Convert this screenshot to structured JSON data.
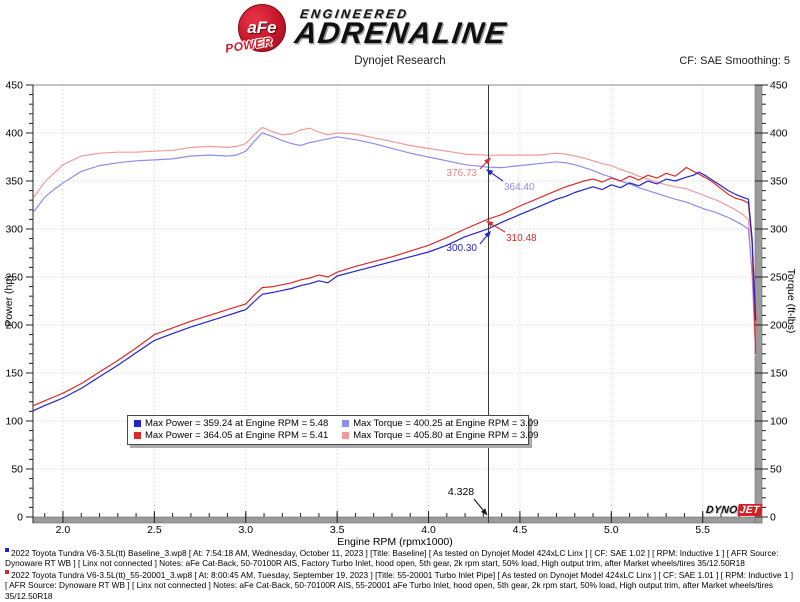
{
  "header": {
    "brand": {
      "badge_main": "aFe",
      "badge_sub": "POWER",
      "line1": "ENGINEERED",
      "line2": "ADRENALINE"
    },
    "title": "Dynojet Research",
    "cf_label": "CF: SAE Smoothing: 5"
  },
  "legend": {
    "entries": [
      {
        "swatch": "#2323cd",
        "text": "Max Power = 359.24 at Engine RPM = 5.48"
      },
      {
        "swatch": "#8d8dec",
        "text": "Max Torque = 400.25 at Engine RPM = 3.09"
      },
      {
        "swatch": "#d92b2b",
        "text": "Max Power = 364.05 at Engine RPM = 5.41"
      },
      {
        "swatch": "#f09a9a",
        "text": "Max Torque = 405.80 at Engine RPM = 3.09"
      }
    ]
  },
  "watermark": {
    "part1": "DYNO",
    "part2": "JET"
  },
  "footer": {
    "entries": [
      {
        "marker_color": "#2323cd",
        "text": "2022 Toyota Tundra V6-3.5L(tt) Baseline_3.wp8 [ At: 7:54:18 AM, Wednesday, October 11, 2023 ] [Title: Baseline]  [ As tested on Dynojet Model 424xLC Linx ] [ CF: SAE 1.02 ] [ RPM: Inductive 1 ] [ AFR Source: Dynoware RT WB ] [ Linx not connected ] Notes: aFe Cat-Back, 50-70100R AIS, Factory Turbo Inlet, hood open, 5th gear, 2k rpm start, 50% load, High output trim, after Market wheels/tires 35/12.50R18"
      },
      {
        "marker_color": "#d92b2b",
        "text": "2022 Toyota Tundra V6-3.5L(tt)_55-20001_3.wp8 [ At: 8:00:45 AM, Tuesday, September 19, 2023 ] [Title: 55-20001 Turbo Inlet Pipe]  [ As tested on Dynojet Model 424xLC Linx ] [ CF: SAE 1.01 ] [ RPM: Inductive 1 ] [ AFR Source: Dynoware RT WB ] [ Linx not connected ] Notes: aFe Cat-Back, 50-70100R AIS, 55-20001 aFe Turbo Inlet, hood open, 5th gear, 2k rpm start, 50% load, High output trim, after Market wheels/tires 35/12.50R18"
      }
    ]
  },
  "chart_data": {
    "type": "line",
    "title": "Dynojet Research",
    "xlabel": "Engine RPM (rpmx1000)",
    "ylabel_left": "Power (hp)",
    "ylabel_right": "Torque (ft-lbs)",
    "x_range": [
      1.836,
      5.797
    ],
    "y_range": [
      0,
      450
    ],
    "x_ticks": [
      2.0,
      2.5,
      3.0,
      3.5,
      4.0,
      4.5,
      5.0,
      5.5
    ],
    "y_ticks": [
      0,
      50,
      100,
      150,
      200,
      250,
      300,
      350,
      400,
      450
    ],
    "x_minor_step": 0.1,
    "y_minor_step": 10,
    "grid": "dotted",
    "rpm": [
      1.84,
      1.9,
      1.95,
      2,
      2.1,
      2.2,
      2.3,
      2.4,
      2.5,
      2.6,
      2.7,
      2.8,
      2.9,
      2.95,
      3,
      3.05,
      3.09,
      3.15,
      3.2,
      3.25,
      3.3,
      3.35,
      3.4,
      3.45,
      3.5,
      3.6,
      3.7,
      3.8,
      3.9,
      4,
      4.1,
      4.2,
      4.328,
      4.4,
      4.5,
      4.6,
      4.7,
      4.75,
      4.8,
      4.85,
      4.9,
      4.95,
      5,
      5.05,
      5.1,
      5.15,
      5.2,
      5.25,
      5.3,
      5.35,
      5.41,
      5.45,
      5.48,
      5.52,
      5.56,
      5.6,
      5.64,
      5.68,
      5.72,
      5.75,
      5.77,
      5.79
    ],
    "series": [
      {
        "id": "power-baseline",
        "name": "Power - Baseline",
        "unit": "hp",
        "color": "#2323cd",
        "max": {
          "value": 359.24,
          "rpm": 5.48
        },
        "values": [
          111,
          116,
          120,
          124,
          134,
          146,
          158,
          171,
          184,
          191,
          198,
          204,
          210,
          213,
          216,
          225,
          232,
          234,
          236,
          238,
          241,
          243,
          246,
          244,
          251,
          256,
          261,
          266,
          271,
          276,
          283,
          292,
          300.3,
          307,
          315,
          323,
          331,
          334,
          338,
          341,
          344,
          341,
          346,
          343,
          348,
          345,
          350,
          347,
          352,
          350,
          354,
          356,
          359.24,
          355,
          350,
          345,
          340,
          336,
          333,
          331,
          290,
          205
        ]
      },
      {
        "id": "power-intake",
        "name": "Power - 55-20001 Turbo Inlet Pipe",
        "unit": "hp",
        "color": "#d92b2b",
        "max": {
          "value": 364.05,
          "rpm": 5.41
        },
        "values": [
          116,
          121,
          125,
          129,
          139,
          151,
          163,
          176,
          190,
          197,
          204,
          210,
          216,
          219,
          222,
          232,
          239,
          240,
          242,
          244,
          247,
          249,
          252,
          250,
          255,
          261,
          266,
          271,
          277,
          283,
          291,
          300,
          310.48,
          315,
          324,
          332,
          340,
          344,
          347,
          350,
          352,
          349,
          353,
          350,
          355,
          351,
          356,
          353,
          358,
          355,
          364.05,
          360,
          357,
          353,
          348,
          342,
          336,
          332,
          330,
          327,
          285,
          170
        ]
      },
      {
        "id": "torque-baseline",
        "name": "Torque - Baseline",
        "unit": "ft-lbs",
        "color": "#8d8dec",
        "max": {
          "value": 400.25,
          "rpm": 3.09
        },
        "values": [
          318,
          333,
          341,
          348,
          360,
          366,
          369,
          371,
          372,
          373,
          376,
          377,
          376,
          377,
          381,
          392,
          400.25,
          396,
          392,
          389,
          387,
          390,
          392,
          394,
          396,
          393,
          389,
          384,
          379,
          375,
          371,
          367,
          364.4,
          364,
          366,
          368,
          370,
          369,
          367,
          364,
          361,
          357,
          354,
          350,
          347,
          343,
          340,
          337,
          334,
          331,
          328,
          325,
          323,
          320,
          318,
          315,
          312,
          308,
          304,
          300,
          255,
          202
        ]
      },
      {
        "id": "torque-intake",
        "name": "Torque - 55-20001 Turbo Inlet Pipe",
        "unit": "ft-lbs",
        "color": "#f09a9a",
        "max": {
          "value": 405.8,
          "rpm": 3.09
        },
        "values": [
          333,
          349,
          358,
          367,
          376,
          379,
          380,
          380,
          381,
          382,
          385,
          386,
          385,
          386,
          389,
          399,
          405.8,
          401,
          398,
          399,
          403,
          405,
          401,
          398,
          400,
          399,
          395,
          391,
          387,
          384,
          381,
          378,
          376.73,
          377,
          377,
          377,
          379,
          378,
          376,
          374,
          371,
          368,
          366,
          362,
          359,
          355,
          352,
          349,
          346,
          344,
          342,
          339,
          337,
          334,
          331,
          328,
          324,
          320,
          315,
          310,
          250,
          168
        ]
      }
    ],
    "cursor": {
      "rpm": 4.328,
      "label": "4.328",
      "readouts": [
        {
          "text": "376.73",
          "series": 3,
          "color": "#e98585",
          "arrow_color": "#d92b2b"
        },
        {
          "text": "364.40",
          "series": 2,
          "color": "#8d8dec",
          "arrow_color": "#2323cd"
        },
        {
          "text": "310.48",
          "series": 1,
          "color": "#d92b2b",
          "arrow_color": "#d92b2b"
        },
        {
          "text": "300.30",
          "series": 0,
          "color": "#2323cd",
          "arrow_color": "#2323cd"
        }
      ]
    }
  }
}
